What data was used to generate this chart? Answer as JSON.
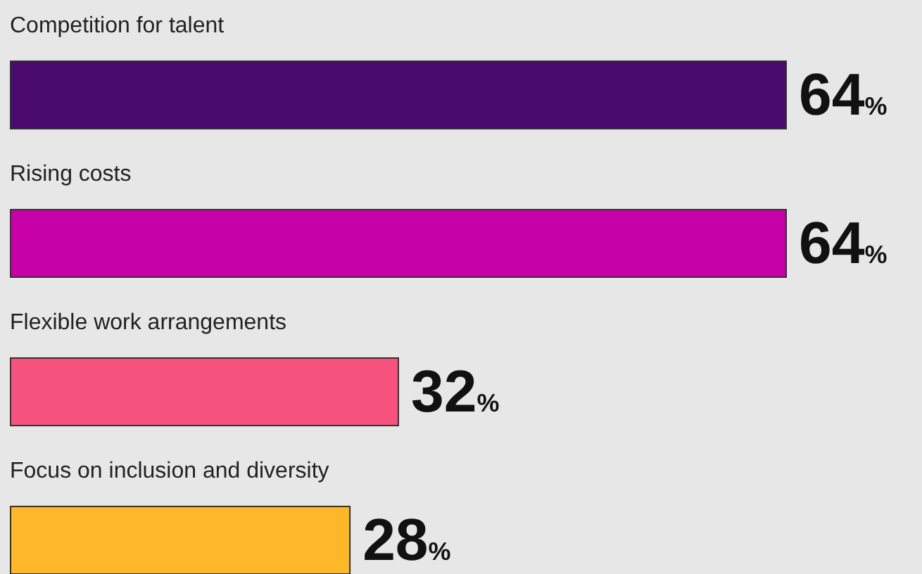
{
  "chart_data": {
    "type": "bar",
    "orientation": "horizontal",
    "xlim": [
      0,
      64
    ],
    "categories": [
      "Competition for talent",
      "Rising costs",
      "Flexible work arrangements",
      "Focus on inclusion and diversity"
    ],
    "values": [
      64,
      64,
      32,
      28
    ],
    "value_labels": [
      "64%",
      "64%",
      "32%",
      "28%"
    ],
    "colors": [
      "#4b0a6e",
      "#c800a8",
      "#f7527d",
      "#ffb72a"
    ]
  }
}
